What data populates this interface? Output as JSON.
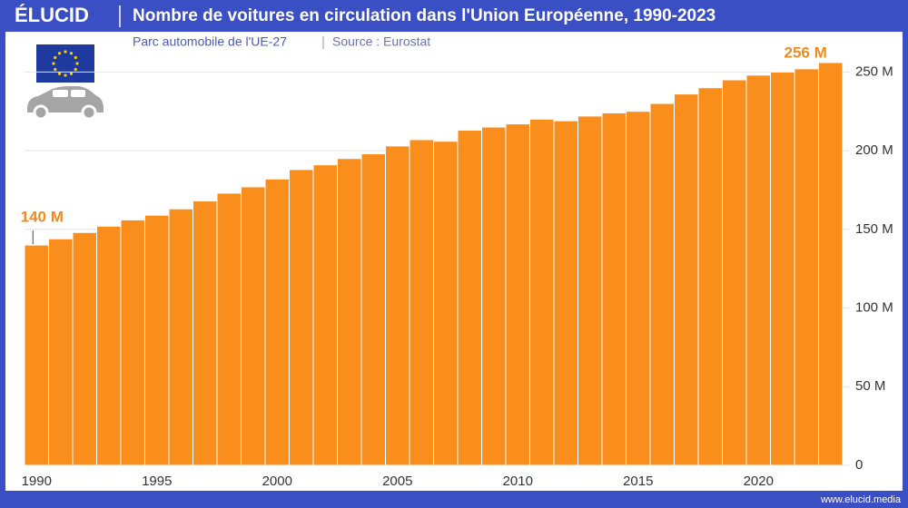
{
  "logo": "ÉLUCID",
  "footer": "www.elucid.media",
  "chart_data": {
    "type": "bar",
    "title": "Nombre de voitures en circulation dans l'Union Européenne, 1990-2023",
    "subtitle": "Parc automobile de l'UE-27",
    "source": "Source : Eurostat",
    "x": [
      1990,
      1991,
      1992,
      1993,
      1994,
      1995,
      1996,
      1997,
      1998,
      1999,
      2000,
      2001,
      2002,
      2003,
      2004,
      2005,
      2006,
      2007,
      2008,
      2009,
      2010,
      2011,
      2012,
      2013,
      2014,
      2015,
      2016,
      2017,
      2018,
      2019,
      2020,
      2021,
      2022,
      2023
    ],
    "values": [
      140,
      144,
      148,
      152,
      156,
      159,
      163,
      168,
      173,
      177,
      182,
      188,
      191,
      195,
      198,
      203,
      207,
      206,
      213,
      215,
      217,
      220,
      219,
      222,
      224,
      225,
      230,
      236,
      240,
      245,
      248,
      250,
      252,
      256
    ],
    "value_labels": [
      "140 M",
      null,
      null,
      null,
      null,
      null,
      null,
      null,
      null,
      null,
      null,
      null,
      null,
      null,
      null,
      null,
      null,
      null,
      null,
      null,
      null,
      null,
      null,
      null,
      null,
      null,
      null,
      null,
      null,
      null,
      null,
      null,
      null,
      "256 M"
    ],
    "color": "#f98e1d",
    "xlim": [
      1989.5,
      2023.5
    ],
    "xticks": [
      1990,
      1995,
      2000,
      2005,
      2010,
      2015,
      2020
    ],
    "ylim": [
      0,
      260
    ],
    "yticks": [
      0,
      {
        "value": 50,
        "label": "50 M"
      },
      {
        "value": 100,
        "label": "100 M"
      },
      {
        "value": 150,
        "label": "150 M"
      },
      {
        "value": 200,
        "label": "200 M"
      },
      {
        "value": 250,
        "label": "250 M"
      }
    ],
    "grid": true
  }
}
